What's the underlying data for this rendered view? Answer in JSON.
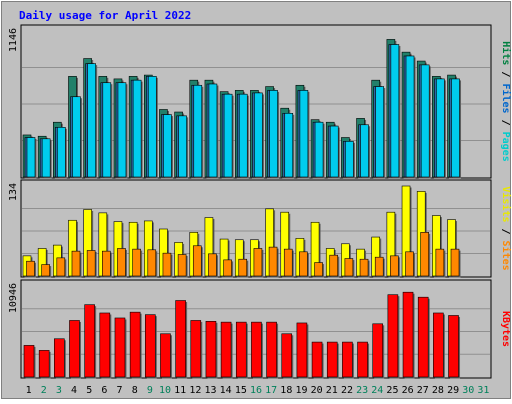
{
  "chart_data": [
    {
      "type": "bar",
      "title": "Daily usage for April 2022",
      "panel": "pages-files-hits",
      "ymax_label": "1146",
      "ylim": [
        0,
        1146
      ],
      "legend": [
        {
          "label": "Pages",
          "color": "#00cccc"
        },
        {
          "label": "Files",
          "color": "#0066cc"
        },
        {
          "label": "Hits",
          "color": "#008040"
        }
      ],
      "categories": [
        "1",
        "2",
        "3",
        "4",
        "5",
        "6",
        "7",
        "8",
        "9",
        "10",
        "11",
        "12",
        "13",
        "14",
        "15",
        "16",
        "17",
        "18",
        "19",
        "20",
        "21",
        "22",
        "23",
        "24",
        "25",
        "26",
        "27",
        "28",
        "29",
        "30",
        "31"
      ],
      "series": [
        {
          "name": "Hits",
          "color": "#22806a",
          "values": [
            330,
            320,
            430,
            790,
            930,
            790,
            770,
            790,
            800,
            530,
            510,
            760,
            760,
            670,
            680,
            680,
            710,
            540,
            720,
            450,
            430,
            310,
            460,
            760,
            1080,
            980,
            910,
            790,
            800,
            null,
            null
          ]
        },
        {
          "name": "Files",
          "color": "#2a6aa8",
          "values": [
            310,
            300,
            390,
            630,
            890,
            740,
            740,
            760,
            790,
            490,
            480,
            720,
            730,
            650,
            650,
            660,
            680,
            500,
            680,
            430,
            400,
            280,
            410,
            710,
            1040,
            950,
            880,
            770,
            770,
            null,
            null
          ]
        },
        {
          "name": "Pages",
          "color": "#00ccee",
          "values": [
            310,
            300,
            390,
            630,
            890,
            740,
            740,
            760,
            790,
            490,
            480,
            720,
            730,
            650,
            650,
            660,
            680,
            500,
            680,
            430,
            400,
            280,
            410,
            710,
            1040,
            950,
            880,
            770,
            770,
            null,
            null
          ]
        }
      ]
    },
    {
      "type": "bar",
      "panel": "visits-sites",
      "ymax_label": "134",
      "ylim": [
        0,
        134
      ],
      "legend": [
        {
          "label": "Sites",
          "color": "#ff8800"
        },
        {
          "label": "Visits",
          "color": "#e8e800"
        }
      ],
      "categories": [
        "1",
        "2",
        "3",
        "4",
        "5",
        "6",
        "7",
        "8",
        "9",
        "10",
        "11",
        "12",
        "13",
        "14",
        "15",
        "16",
        "17",
        "18",
        "19",
        "20",
        "21",
        "22",
        "23",
        "24",
        "25",
        "26",
        "27",
        "28",
        "29",
        "30",
        "31"
      ],
      "series": [
        {
          "name": "Visits",
          "color": "#ffff00",
          "values": [
            30,
            41,
            46,
            83,
            99,
            94,
            81,
            80,
            82,
            70,
            50,
            65,
            87,
            55,
            54,
            54,
            100,
            95,
            56,
            80,
            41,
            48,
            40,
            58,
            95,
            134,
            126,
            90,
            84,
            null,
            null
          ]
        },
        {
          "name": "Sites",
          "color": "#ff8800",
          "values": [
            22,
            17,
            27,
            37,
            38,
            37,
            41,
            40,
            39,
            34,
            32,
            45,
            33,
            24,
            25,
            41,
            43,
            40,
            36,
            20,
            31,
            26,
            25,
            28,
            30,
            36,
            65,
            40,
            40,
            null,
            null
          ]
        }
      ]
    },
    {
      "type": "bar",
      "panel": "kbytes",
      "ymax_label": "10946",
      "ylim": [
        0,
        10946
      ],
      "legend": [
        {
          "label": "KBytes",
          "color": "#ff0000"
        }
      ],
      "categories": [
        "1",
        "2",
        "3",
        "4",
        "5",
        "6",
        "7",
        "8",
        "9",
        "10",
        "11",
        "12",
        "13",
        "14",
        "15",
        "16",
        "17",
        "18",
        "19",
        "20",
        "21",
        "22",
        "23",
        "24",
        "25",
        "26",
        "27",
        "28",
        "29",
        "30",
        "31"
      ],
      "series": [
        {
          "name": "KBytes",
          "color": "#ff0000",
          "values": [
            3800,
            3200,
            4600,
            6800,
            8700,
            7700,
            7100,
            7800,
            7500,
            5200,
            9200,
            6800,
            6700,
            6600,
            6600,
            6600,
            6600,
            5200,
            6500,
            4200,
            4200,
            4200,
            4200,
            6400,
            9900,
            10200,
            9600,
            7700,
            7400,
            null,
            null
          ]
        }
      ]
    }
  ],
  "weekend_days": [
    "2",
    "3",
    "9",
    "10",
    "16",
    "17",
    "23",
    "24",
    "30",
    "31"
  ]
}
